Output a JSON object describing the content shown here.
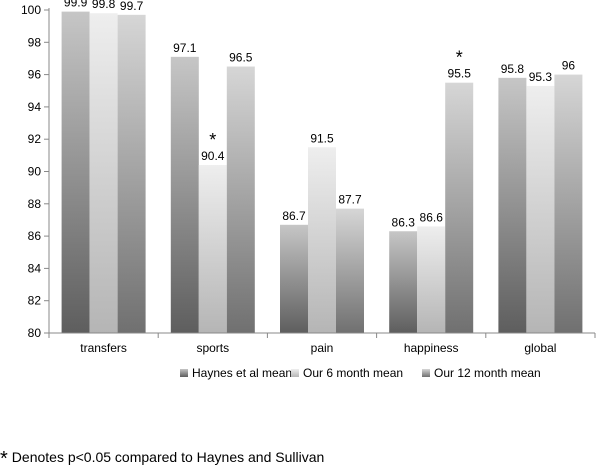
{
  "chart_data": {
    "type": "bar",
    "categories": [
      "transfers",
      "sports",
      "pain",
      "happiness",
      "global"
    ],
    "series": [
      {
        "name": "Haynes et al mean",
        "values": [
          99.9,
          97.1,
          86.7,
          86.3,
          95.8
        ]
      },
      {
        "name": "Our 6 month mean",
        "values": [
          99.8,
          90.4,
          91.5,
          86.6,
          95.3
        ]
      },
      {
        "name": "Our 12 month mean",
        "values": [
          99.7,
          96.5,
          87.7,
          95.5,
          96
        ]
      }
    ],
    "data_labels": [
      [
        "99.9",
        "97.1",
        "86.7",
        "86.3",
        "95.8"
      ],
      [
        "99.8",
        "90.4",
        "91.5",
        "86.6",
        "95.3"
      ],
      [
        "99.7",
        "96.5",
        "87.7",
        "95.5",
        "96"
      ]
    ],
    "yticks": [
      "80",
      "82",
      "84",
      "86",
      "88",
      "90",
      "92",
      "94",
      "96",
      "98",
      "100"
    ],
    "ylim": [
      80,
      100
    ],
    "annotations": [
      {
        "text": "*",
        "category": "sports",
        "series": 1
      },
      {
        "text": "*",
        "category": "happiness",
        "series": 2
      }
    ],
    "legend_position": "bottom",
    "grid": false,
    "colors": {
      "axis": "#888888"
    }
  },
  "footnote": {
    "marker": "*",
    "text": "Denotes p<0.05 compared to Haynes and Sullivan"
  }
}
